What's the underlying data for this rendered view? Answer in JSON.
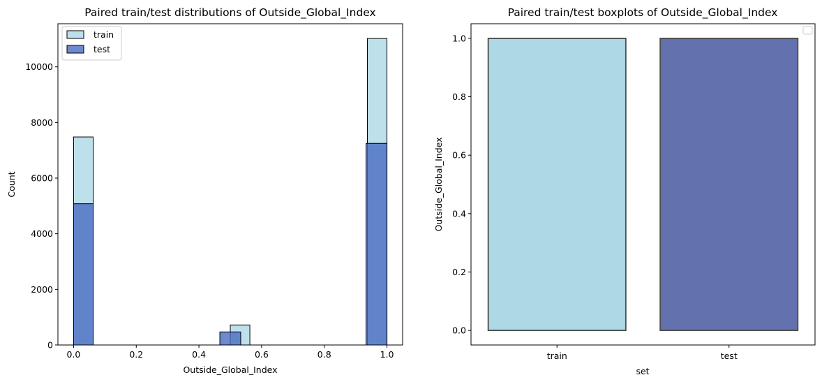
{
  "chart_data": [
    {
      "type": "histogram",
      "title": "Paired train/test distributions of Outside_Global_Index",
      "xlabel": "Outside_Global_Index",
      "ylabel": "Count",
      "xlim": [
        -0.05,
        1.05
      ],
      "ylim": [
        0,
        11550
      ],
      "xticks": [
        "0.0",
        "0.2",
        "0.4",
        "0.6",
        "0.8",
        "1.0"
      ],
      "yticks": [
        "0",
        "2000",
        "4000",
        "6000",
        "8000",
        "10000"
      ],
      "legend": {
        "position": "top-left",
        "entries": [
          "train",
          "test"
        ]
      },
      "series": [
        {
          "name": "train",
          "color": "#add8e6",
          "bins": [
            {
              "x0": 0.0,
              "x1": 0.0625,
              "count": 7480
            },
            {
              "x0": 0.5,
              "x1": 0.5625,
              "count": 720
            },
            {
              "x0": 0.9375,
              "x1": 1.0,
              "count": 11020
            }
          ]
        },
        {
          "name": "test",
          "color": "#4a6cc0",
          "bins": [
            {
              "x0": 0.0,
              "x1": 0.0625,
              "count": 5080
            },
            {
              "x0": 0.4667,
              "x1": 0.5333,
              "count": 470
            },
            {
              "x0": 0.9333,
              "x1": 1.0,
              "count": 7250
            }
          ]
        }
      ]
    },
    {
      "type": "box",
      "title": "Paired train/test boxplots of Outside_Global_Index",
      "xlabel": "set",
      "ylabel": "Outside_Global_Index",
      "ylim": [
        -0.05,
        1.05
      ],
      "categories": [
        "train",
        "test"
      ],
      "yticks": [
        "0.0",
        "0.2",
        "0.4",
        "0.6",
        "0.8",
        "1.0"
      ],
      "legend": {
        "position": "top-right",
        "entries": []
      },
      "boxes": [
        {
          "name": "train",
          "color": "#add8e6",
          "min": 0,
          "q1": 0,
          "median": 1,
          "q3": 1,
          "max": 1
        },
        {
          "name": "test",
          "color": "#6471af",
          "min": 0,
          "q1": 0,
          "median": 1,
          "q3": 1,
          "max": 1
        }
      ]
    }
  ]
}
